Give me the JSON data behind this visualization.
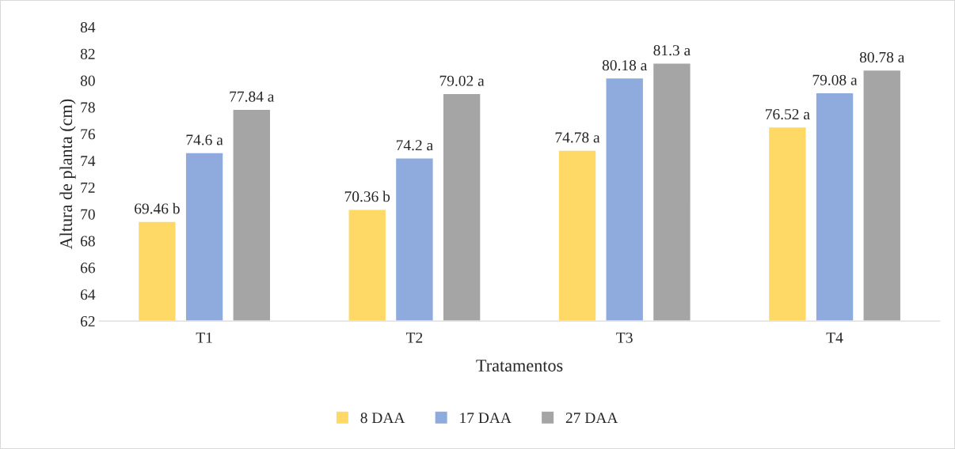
{
  "chart_data": {
    "type": "bar",
    "xlabel": "Tratamentos",
    "ylabel": "Altura de planta (cm)",
    "categories": [
      "T1",
      "T2",
      "T3",
      "T4"
    ],
    "series": [
      {
        "name": "8 DAA",
        "color": "#ffd966",
        "values": [
          69.46,
          70.36,
          74.78,
          76.52
        ],
        "value_labels": [
          "69.46 b",
          "70.36 b",
          "74.78 a",
          "76.52 a"
        ]
      },
      {
        "name": "17 DAA",
        "color": "#8faadc",
        "values": [
          74.6,
          74.2,
          80.18,
          79.08
        ],
        "value_labels": [
          "74.6 a",
          "74.2 a",
          "80.18 a",
          "79.08 a"
        ]
      },
      {
        "name": "27 DAA",
        "color": "#a5a5a5",
        "values": [
          77.84,
          79.02,
          81.3,
          80.78
        ],
        "value_labels": [
          "77.84 a",
          "79.02 a",
          "81.3 a",
          "80.78 a"
        ]
      }
    ],
    "ylim": [
      62,
      84
    ],
    "yticks": [
      62,
      64,
      66,
      68,
      70,
      72,
      74,
      76,
      78,
      80,
      82,
      84
    ],
    "grid": false,
    "legend": "bottom"
  }
}
